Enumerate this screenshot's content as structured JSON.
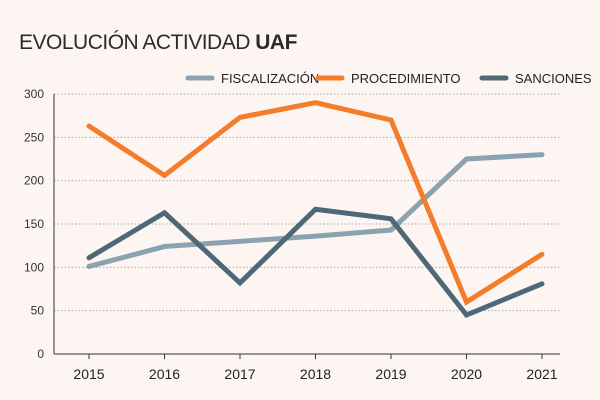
{
  "title": {
    "light": "EVOLUCIÓN ACTIVIDAD",
    "bold": "UAF"
  },
  "colors": {
    "background": "#fdf5f1",
    "grid": "#a9a9a9"
  },
  "chart_data": {
    "type": "line",
    "title": "EVOLUCIÓN ACTIVIDAD UAF",
    "xlabel": "",
    "ylabel": "",
    "categories": [
      "2015",
      "2016",
      "2017",
      "2018",
      "2019",
      "2020",
      "2021"
    ],
    "ylim": [
      0,
      300
    ],
    "yticks": [
      0,
      50,
      100,
      150,
      200,
      250,
      300
    ],
    "grid": true,
    "legend_position": "top-right",
    "series": [
      {
        "name": "FISCALIZACIÓN",
        "color": "#8ba3b0",
        "values": [
          101,
          124,
          130,
          136,
          143,
          225,
          230
        ]
      },
      {
        "name": "PROCEDIMIENTO",
        "color": "#f47d2c",
        "values": [
          263,
          206,
          273,
          290,
          270,
          60,
          115
        ]
      },
      {
        "name": "SANCIONES",
        "color": "#4f6878",
        "values": [
          111,
          163,
          82,
          167,
          156,
          45,
          81
        ]
      }
    ]
  }
}
